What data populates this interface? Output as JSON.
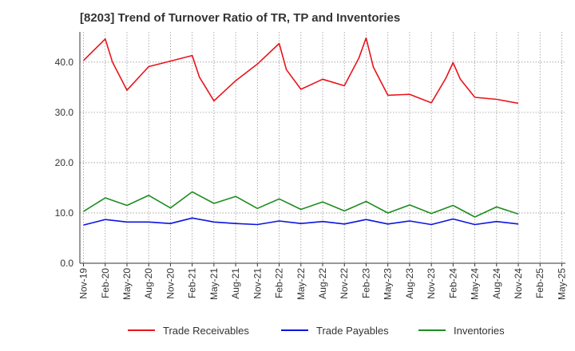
{
  "chart_data": {
    "type": "line",
    "title": "[8203]  Trend of Turnover Ratio of TR, TP and Inventories",
    "xlabel": "",
    "ylabel": "",
    "ylim": [
      0,
      46
    ],
    "yticks": [
      0,
      10,
      20,
      30,
      40
    ],
    "ytick_labels": [
      "0.0",
      "10.0",
      "20.0",
      "30.0",
      "40.0"
    ],
    "x_tick_labels": [
      "Nov-19",
      "Feb-20",
      "May-20",
      "Aug-20",
      "Nov-20",
      "Feb-21",
      "May-21",
      "Aug-21",
      "Nov-21",
      "Feb-22",
      "May-22",
      "Aug-22",
      "Nov-22",
      "Feb-23",
      "May-23",
      "Aug-23",
      "Nov-23",
      "Feb-24",
      "May-24",
      "Aug-24",
      "Nov-24",
      "Feb-25",
      "May-25"
    ],
    "x": [
      "Nov-19",
      "Dec-19",
      "Jan-20",
      "Feb-20",
      "Mar-20",
      "Apr-20",
      "May-20",
      "Jun-20",
      "Jul-20",
      "Aug-20",
      "Sep-20",
      "Oct-20",
      "Nov-20",
      "Dec-20",
      "Jan-21",
      "Feb-21",
      "Mar-21",
      "Apr-21",
      "May-21",
      "Jun-21",
      "Jul-21",
      "Aug-21",
      "Sep-21",
      "Oct-21",
      "Nov-21",
      "Dec-21",
      "Jan-22",
      "Feb-22",
      "Mar-22",
      "Apr-22",
      "May-22",
      "Jun-22",
      "Jul-22",
      "Aug-22",
      "Sep-22",
      "Oct-22",
      "Nov-22",
      "Dec-22",
      "Jan-23",
      "Feb-23",
      "Mar-23",
      "Apr-23",
      "May-23",
      "Jun-23",
      "Jul-23",
      "Aug-23",
      "Sep-23",
      "Oct-23",
      "Nov-23",
      "Dec-23",
      "Jan-24",
      "Feb-24",
      "Mar-24",
      "Apr-24",
      "May-24",
      "Jun-24",
      "Jul-24",
      "Aug-24",
      "Sep-24",
      "Oct-24",
      "Nov-24",
      "Dec-24",
      "Jan-25",
      "Feb-25",
      "Mar-25",
      "Apr-25",
      "May-25"
    ],
    "series": [
      {
        "name": "Trade Receivables",
        "color": "#e8141a",
        "points": [
          [
            "Nov-19",
            40.3
          ],
          [
            "Feb-20",
            44.6
          ],
          [
            "Mar-20",
            40.0
          ],
          [
            "May-20",
            34.4
          ],
          [
            "Aug-20",
            39.1
          ],
          [
            "Nov-20",
            40.2
          ],
          [
            "Feb-21",
            41.3
          ],
          [
            "Mar-21",
            37.0
          ],
          [
            "May-21",
            32.3
          ],
          [
            "Aug-21",
            36.3
          ],
          [
            "Nov-21",
            39.6
          ],
          [
            "Feb-22",
            43.7
          ],
          [
            "Mar-22",
            38.5
          ],
          [
            "May-22",
            34.6
          ],
          [
            "Aug-22",
            36.6
          ],
          [
            "Nov-22",
            35.3
          ],
          [
            "Jan-23",
            40.8
          ],
          [
            "Feb-23",
            44.8
          ],
          [
            "Mar-23",
            39.0
          ],
          [
            "May-23",
            33.4
          ],
          [
            "Aug-23",
            33.6
          ],
          [
            "Nov-23",
            31.9
          ],
          [
            "Jan-24",
            36.8
          ],
          [
            "Feb-24",
            39.9
          ],
          [
            "Mar-24",
            36.6
          ],
          [
            "May-24",
            33.0
          ],
          [
            "Aug-24",
            32.6
          ],
          [
            "Nov-24",
            31.8
          ]
        ]
      },
      {
        "name": "Trade Payables",
        "color": "#0a14e0",
        "points": [
          [
            "Nov-19",
            7.6
          ],
          [
            "Feb-20",
            8.7
          ],
          [
            "May-20",
            8.2
          ],
          [
            "Aug-20",
            8.2
          ],
          [
            "Nov-20",
            7.9
          ],
          [
            "Feb-21",
            9.0
          ],
          [
            "May-21",
            8.2
          ],
          [
            "Aug-21",
            7.9
          ],
          [
            "Nov-21",
            7.7
          ],
          [
            "Feb-22",
            8.4
          ],
          [
            "May-22",
            7.9
          ],
          [
            "Aug-22",
            8.3
          ],
          [
            "Nov-22",
            7.8
          ],
          [
            "Feb-23",
            8.7
          ],
          [
            "May-23",
            7.8
          ],
          [
            "Aug-23",
            8.4
          ],
          [
            "Nov-23",
            7.7
          ],
          [
            "Feb-24",
            8.8
          ],
          [
            "May-24",
            7.7
          ],
          [
            "Aug-24",
            8.3
          ],
          [
            "Nov-24",
            7.8
          ]
        ]
      },
      {
        "name": "Inventories",
        "color": "#1e8c1e",
        "points": [
          [
            "Nov-19",
            10.3
          ],
          [
            "Feb-20",
            13.0
          ],
          [
            "May-20",
            11.5
          ],
          [
            "Aug-20",
            13.5
          ],
          [
            "Nov-20",
            11.0
          ],
          [
            "Feb-21",
            14.2
          ],
          [
            "May-21",
            11.9
          ],
          [
            "Aug-21",
            13.3
          ],
          [
            "Nov-21",
            10.9
          ],
          [
            "Feb-22",
            12.8
          ],
          [
            "May-22",
            10.7
          ],
          [
            "Aug-22",
            12.2
          ],
          [
            "Nov-22",
            10.4
          ],
          [
            "Feb-23",
            12.3
          ],
          [
            "May-23",
            10.0
          ],
          [
            "Aug-23",
            11.6
          ],
          [
            "Nov-23",
            9.9
          ],
          [
            "Feb-24",
            11.5
          ],
          [
            "May-24",
            9.2
          ],
          [
            "Aug-24",
            11.2
          ],
          [
            "Nov-24",
            9.8
          ]
        ]
      }
    ],
    "grid": true,
    "legend_position": "bottom"
  }
}
